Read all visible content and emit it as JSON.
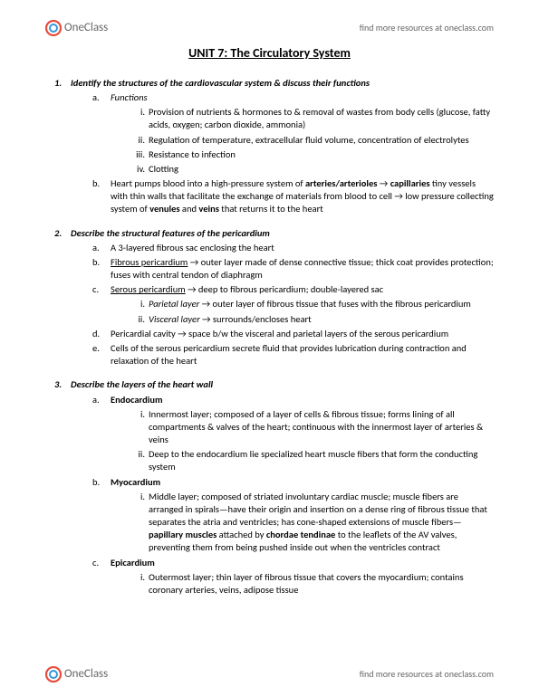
{
  "brand": {
    "name": "OneClass",
    "tagline": "find more resources at oneclass.com"
  },
  "title": "UNIT 7: The Circulatory System",
  "colors": {
    "text": "#000000",
    "muted": "#666666",
    "bg": "#ffffff",
    "logo_red": "#e74c3c",
    "logo_blue": "#3498db"
  },
  "typography": {
    "body_pt": 10.5,
    "title_pt": 14,
    "family": "Calibri"
  },
  "sections": [
    {
      "num": "1.",
      "heading": "Identify the structures of the cardiovascular system & discuss their functions",
      "items": [
        {
          "label": "a.",
          "text": "Functions",
          "italic": true,
          "subitems": [
            {
              "label": "i.",
              "text": "Provision of nutrients & hormones to & removal of wastes from body cells (glucose, fatty acids, oxygen; carbon dioxide, ammonia)"
            },
            {
              "label": "ii.",
              "text": "Regulation of temperature, extracellular fluid volume, concentration of electrolytes"
            },
            {
              "label": "iii.",
              "text": "Resistance to infection"
            },
            {
              "label": "iv.",
              "text": "Clotting"
            }
          ]
        },
        {
          "label": "b.",
          "html": "Heart pumps blood into a high-pressure system of <b>arteries/arterioles</b> → <b>capillaries</b> tiny vessels with thin walls that facilitate the exchange of materials from blood to cell → low pressure collecting system of <b>venules</b> and <b>veins</b> that returns it to the heart"
        }
      ]
    },
    {
      "num": "2.",
      "heading": "Describe the structural features of the pericardium",
      "items": [
        {
          "label": "a.",
          "text": "A 3-layered fibrous sac enclosing the heart"
        },
        {
          "label": "b.",
          "html": "<u>Fibrous pericardium</u> → outer layer made of dense connective tissue; thick coat provides protection; fuses with central tendon of diaphragm"
        },
        {
          "label": "c.",
          "html": "<u>Serous pericardium</u> → deep to fibrous pericardium; double-layered sac",
          "subitems": [
            {
              "label": "i.",
              "html": "<i>Parietal layer</i> → outer layer of fibrous tissue that fuses with the fibrous pericardium"
            },
            {
              "label": "ii.",
              "html": "<i>Visceral layer</i> → surrounds/encloses heart"
            }
          ]
        },
        {
          "label": "d.",
          "html": "Pericardial cavity → space b/w the visceral and parietal layers of the serous pericardium"
        },
        {
          "label": "e.",
          "text": "Cells of the serous pericardium secrete fluid that provides lubrication during contraction and relaxation of the heart"
        }
      ]
    },
    {
      "num": "3.",
      "heading": "Describe the layers of the heart wall",
      "items": [
        {
          "label": "a.",
          "text": "Endocardium",
          "bold": true,
          "subitems": [
            {
              "label": "i.",
              "text": "Innermost layer; composed of a layer of cells & fibrous tissue; forms lining of all compartments & valves of the heart; continuous with the innermost layer of arteries & veins"
            },
            {
              "label": "ii.",
              "text": "Deep to the endocardium lie specialized heart muscle fibers that form the conducting system"
            }
          ]
        },
        {
          "label": "b.",
          "text": "Myocardium",
          "bold": true,
          "subitems": [
            {
              "label": "i.",
              "html": "Middle layer; composed of striated involuntary cardiac muscle; muscle fibers are arranged in spirals—have their origin and insertion on a dense ring of fibrous tissue that separates the atria and ventricles; has cone-shaped extensions of muscle fibers—<b>papillary muscles</b> attached by <b>chordae tendinae</b> to the leaflets of the AV valves, preventing them from being pushed inside out when the ventricles contract"
            }
          ]
        },
        {
          "label": "c.",
          "text": "Epicardium",
          "bold": true,
          "subitems": [
            {
              "label": "i.",
              "text": "Outermost layer; thin layer of fibrous tissue that covers the myocardium; contains coronary arteries, veins, adipose tissue"
            }
          ]
        }
      ]
    }
  ]
}
